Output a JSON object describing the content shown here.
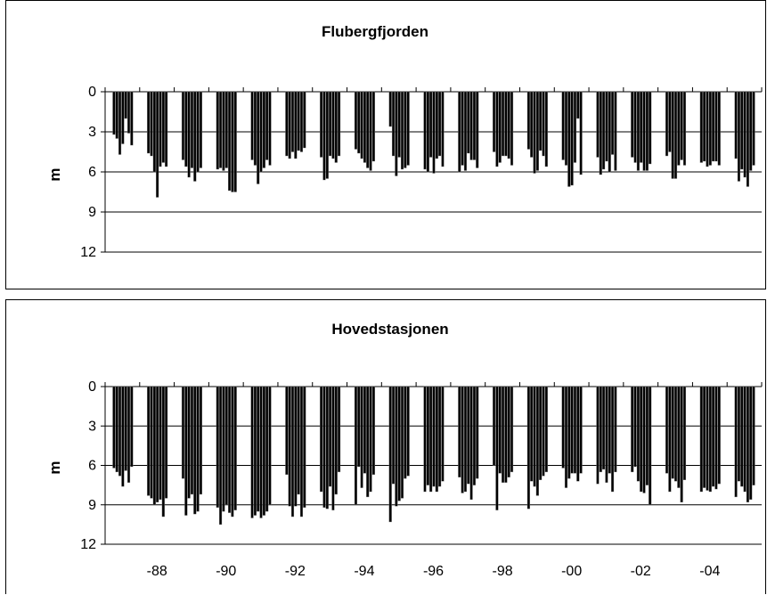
{
  "chart_data": [
    {
      "type": "bar",
      "title": "Flubergfjorden",
      "ylabel": "m",
      "xlabel": "",
      "ylim": [
        0,
        12
      ],
      "y_inverted": true,
      "yticks": [
        "0",
        "3",
        "6",
        "9",
        "12"
      ],
      "x_tick_labels": [],
      "grid": "horizontal",
      "groups": [
        {
          "year": 1987,
          "values": [
            3.2,
            3.5,
            4.7,
            3.9,
            2.0,
            3.1,
            4.0
          ]
        },
        {
          "year": 1988,
          "values": [
            4.6,
            4.8,
            6.0,
            7.9,
            5.6,
            5.3,
            5.6
          ]
        },
        {
          "year": 1989,
          "values": [
            5.1,
            5.6,
            6.4,
            5.7,
            6.7,
            6.0,
            5.7
          ]
        },
        {
          "year": 1990,
          "values": [
            5.8,
            5.7,
            5.9,
            5.7,
            7.4,
            7.5,
            7.5
          ]
        },
        {
          "year": 1991,
          "values": [
            5.1,
            5.5,
            6.9,
            6.0,
            5.7,
            5.1,
            5.5
          ]
        },
        {
          "year": 1992,
          "values": [
            4.8,
            5.0,
            4.5,
            5.0,
            4.4,
            4.5,
            4.2
          ]
        },
        {
          "year": 1993,
          "values": [
            4.9,
            6.6,
            6.5,
            4.8,
            5.0,
            5.3,
            4.8
          ]
        },
        {
          "year": 1994,
          "values": [
            4.3,
            4.6,
            5.0,
            5.3,
            5.7,
            5.9,
            5.2
          ]
        },
        {
          "year": 1995,
          "values": [
            2.6,
            4.8,
            6.3,
            4.9,
            5.8,
            5.7,
            5.5
          ]
        },
        {
          "year": 1996,
          "values": [
            5.8,
            6.0,
            4.9,
            6.1,
            5.0,
            4.8,
            5.6
          ]
        },
        {
          "year": 1997,
          "values": [
            6.0,
            5.5,
            5.9,
            4.6,
            5.1,
            5.1,
            5.7
          ]
        },
        {
          "year": 1998,
          "values": [
            4.5,
            5.6,
            5.3,
            4.8,
            4.8,
            5.0,
            5.5
          ]
        },
        {
          "year": 1999,
          "values": [
            4.3,
            4.9,
            6.1,
            5.9,
            4.4,
            4.8,
            5.6
          ]
        },
        {
          "year": 2000,
          "values": [
            5.1,
            5.5,
            7.1,
            7.0,
            5.3,
            2.0,
            6.2
          ]
        },
        {
          "year": 2001,
          "values": [
            4.9,
            6.2,
            5.8,
            5.2,
            6.0,
            4.7,
            5.9
          ]
        },
        {
          "year": 2002,
          "values": [
            4.9,
            5.3,
            5.9,
            5.3,
            5.9,
            5.9,
            5.4
          ]
        },
        {
          "year": 2003,
          "values": [
            4.8,
            4.5,
            6.5,
            6.5,
            5.5,
            5.1,
            5.5
          ]
        },
        {
          "year": 2004,
          "values": [
            5.3,
            5.2,
            5.6,
            5.5,
            5.2,
            5.2,
            5.5
          ]
        },
        {
          "year": 2005,
          "values": [
            5.0,
            6.7,
            5.8,
            6.4,
            7.1,
            5.9,
            5.5
          ]
        }
      ]
    },
    {
      "type": "bar",
      "title": "Hovedstasjonen",
      "ylabel": "m",
      "xlabel": "",
      "ylim": [
        0,
        12
      ],
      "y_inverted": true,
      "yticks": [
        "0",
        "3",
        "6",
        "9",
        "12"
      ],
      "x_tick_labels": [
        "-88",
        "-90",
        "-92",
        "-94",
        "-96",
        "-98",
        "-00",
        "-02",
        "-04"
      ],
      "grid": "horizontal",
      "groups": [
        {
          "year": 1987,
          "values": [
            6.2,
            6.5,
            6.8,
            7.6,
            6.4,
            7.3,
            6.1
          ]
        },
        {
          "year": 1988,
          "values": [
            8.3,
            8.5,
            9.0,
            8.8,
            8.6,
            9.9,
            8.5
          ]
        },
        {
          "year": 1989,
          "values": [
            7.0,
            9.8,
            8.5,
            8.2,
            9.7,
            9.5,
            8.2
          ]
        },
        {
          "year": 1990,
          "values": [
            9.2,
            10.5,
            9.5,
            9.0,
            9.6,
            9.9,
            9.4
          ]
        },
        {
          "year": 1991,
          "values": [
            10.0,
            9.8,
            9.5,
            10.0,
            9.8,
            9.5,
            9.0
          ]
        },
        {
          "year": 1992,
          "values": [
            6.7,
            9.1,
            9.9,
            9.1,
            8.2,
            9.9,
            9.2
          ]
        },
        {
          "year": 1993,
          "values": [
            8.0,
            9.2,
            9.3,
            7.6,
            9.4,
            8.2,
            6.5
          ]
        },
        {
          "year": 1994,
          "values": [
            9.0,
            6.1,
            7.7,
            6.6,
            8.4,
            8.0,
            6.7
          ]
        },
        {
          "year": 1995,
          "values": [
            10.3,
            7.4,
            9.1,
            8.7,
            8.5,
            7.0,
            6.8
          ]
        },
        {
          "year": 1996,
          "values": [
            8.0,
            7.5,
            8.0,
            7.6,
            8.0,
            7.6,
            7.2
          ]
        },
        {
          "year": 1997,
          "values": [
            6.9,
            8.1,
            8.0,
            7.4,
            8.6,
            7.5,
            7.0
          ]
        },
        {
          "year": 1998,
          "values": [
            6.0,
            9.4,
            6.6,
            7.3,
            7.3,
            6.9,
            6.5
          ]
        },
        {
          "year": 1999,
          "values": [
            9.3,
            7.2,
            7.6,
            8.3,
            7.1,
            6.8,
            6.5
          ]
        },
        {
          "year": 2000,
          "values": [
            6.2,
            7.7,
            7.0,
            6.6,
            6.6,
            7.2,
            6.6
          ]
        },
        {
          "year": 2001,
          "values": [
            7.4,
            6.5,
            6.3,
            7.3,
            6.6,
            8.0,
            6.5
          ]
        },
        {
          "year": 2002,
          "values": [
            6.5,
            6.1,
            7.2,
            8.0,
            8.1,
            7.5,
            9.0
          ]
        },
        {
          "year": 2003,
          "values": [
            6.6,
            8.0,
            7.0,
            7.2,
            7.7,
            8.8,
            7.1
          ]
        },
        {
          "year": 2004,
          "values": [
            8.0,
            7.7,
            7.9,
            8.0,
            7.6,
            7.8,
            7.4
          ]
        },
        {
          "year": 2005,
          "values": [
            8.4,
            7.2,
            7.6,
            8.0,
            8.8,
            8.6,
            7.5
          ]
        }
      ]
    }
  ]
}
